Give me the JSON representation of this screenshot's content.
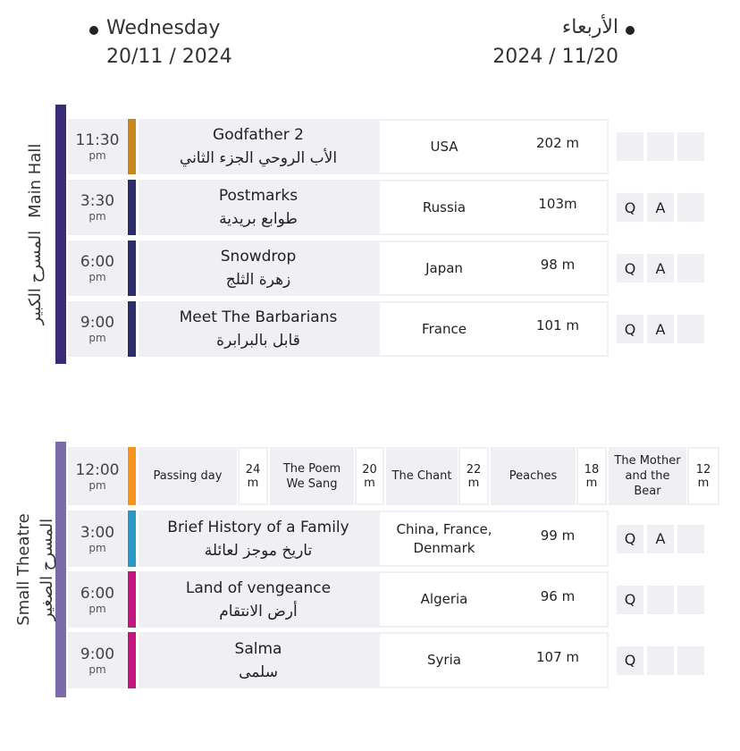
{
  "header": {
    "day_en": "Wednesday",
    "date_en": "20/11 / 2024",
    "day_ar": "الأربعاء",
    "date_ar": "2024 / 11/20"
  },
  "venues": [
    {
      "name_en": "Main Hall",
      "name_ar": "المسرح الكبير",
      "color": "#3a2a78",
      "screenings": [
        {
          "time": "11:30",
          "period": "pm",
          "title_en": "Godfather 2",
          "title_ar": "الأب الروحي الجزء الثاني",
          "country": "USA",
          "duration": "202 m",
          "tags": [],
          "color": "#c8861c"
        },
        {
          "time": "3:30",
          "period": "pm",
          "title_en": "Postmarks",
          "title_ar": "طوابع بريدية",
          "country": "Russia",
          "duration": "103m",
          "tags": [
            "Q",
            "A"
          ],
          "color": "#2c2e6c"
        },
        {
          "time": "6:00",
          "period": "pm",
          "title_en": "Snowdrop",
          "title_ar": "زهرة الثلج",
          "country": "Japan",
          "duration": "98 m",
          "tags": [
            "Q",
            "A"
          ],
          "color": "#2c2e6c"
        },
        {
          "time": "9:00",
          "period": "pm",
          "title_en": "Meet The Barbarians",
          "title_ar": "قابل بالبرابرة",
          "country": "France",
          "duration": "101 m",
          "tags": [
            "Q",
            "A"
          ],
          "color": "#2c2e6c"
        }
      ]
    },
    {
      "name_en": "Small Theatre",
      "name_ar": "المسرح الصغير",
      "color": "#7b6ba9",
      "shorts": {
        "time": "12:00",
        "period": "pm",
        "color": "#f7941d",
        "films": [
          {
            "title": "Passing day",
            "duration": "24 m"
          },
          {
            "title": "The Poem We Sang",
            "duration": "20 m"
          },
          {
            "title": "The Chant",
            "duration": "22 m"
          },
          {
            "title": "Peaches",
            "duration": "18 m"
          },
          {
            "title": "The Mother and the Bear",
            "duration": "12 m"
          }
        ]
      },
      "screenings": [
        {
          "time": "3:00",
          "period": "pm",
          "title_en": "Brief History of a Family",
          "title_ar": "تاريخ موجز لعائلة",
          "country": "China, France, Denmark",
          "duration": "99 m",
          "tags": [
            "Q",
            "A"
          ],
          "color": "#2a98c6"
        },
        {
          "time": "6:00",
          "period": "pm",
          "title_en": "Land of vengeance",
          "title_ar": "أرض الانتقام",
          "country": "Algeria",
          "duration": "96 m",
          "tags": [
            "Q"
          ],
          "color": "#c2187e"
        },
        {
          "time": "9:00",
          "period": "pm",
          "title_en": "Salma",
          "title_ar": "سلمى",
          "country": "Syria",
          "duration": "107 m",
          "tags": [
            "Q"
          ],
          "color": "#c2187e"
        }
      ]
    }
  ]
}
